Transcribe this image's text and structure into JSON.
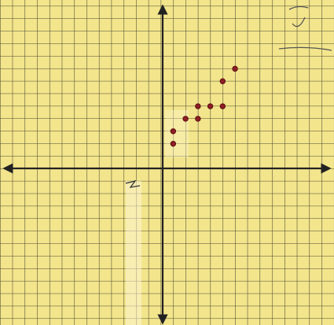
{
  "chart_data": {
    "type": "scatter",
    "x": [
      1,
      1,
      2,
      3,
      3,
      4,
      5,
      5,
      6
    ],
    "values": [
      2,
      3,
      4,
      4,
      5,
      5,
      5,
      7,
      8
    ],
    "color": "#8e1f24",
    "xlim": [
      -13,
      14
    ],
    "ylim": [
      -12.5,
      13.5
    ]
  }
}
